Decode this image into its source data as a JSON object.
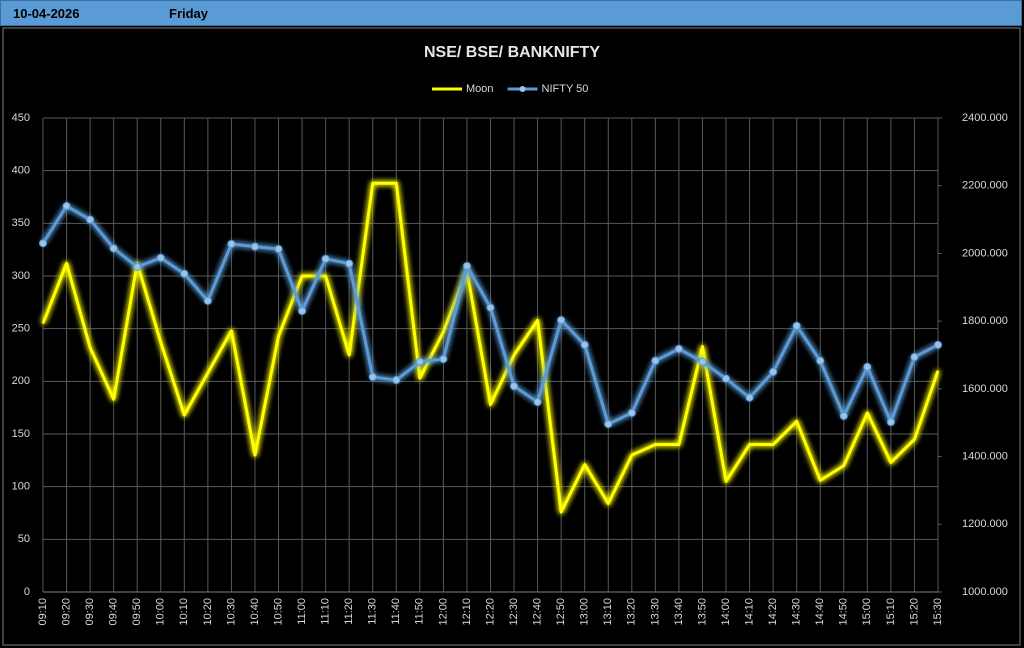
{
  "header": {
    "date": "10-04-2026",
    "day": "Friday"
  },
  "chart_data": {
    "type": "line",
    "title": "NSE/ BSE/ BANKNIFTY",
    "categories": [
      "09:10",
      "09:20",
      "09:30",
      "09:40",
      "09:50",
      "10:00",
      "10:10",
      "10:20",
      "10:30",
      "10:40",
      "10:50",
      "11:00",
      "11:10",
      "11:20",
      "11:30",
      "11:40",
      "11:50",
      "12:00",
      "12:10",
      "12:20",
      "12:30",
      "12:40",
      "12:50",
      "13:00",
      "13:10",
      "13:20",
      "13:30",
      "13:40",
      "13:50",
      "14:00",
      "14:10",
      "14:20",
      "14:30",
      "14:40",
      "14:50",
      "15:00",
      "15:10",
      "15:20",
      "15:30"
    ],
    "series": [
      {
        "name": "Moon",
        "color": "#ffff00",
        "markers": false,
        "values": [
          255,
          312,
          232,
          183,
          312,
          237,
          168,
          208,
          248,
          130,
          243,
          300,
          300,
          225,
          388,
          388,
          203,
          247,
          305,
          178,
          225,
          258,
          76,
          121,
          84,
          130,
          140,
          140,
          233,
          105,
          140,
          140,
          162,
          106,
          120,
          170,
          123,
          145,
          210
        ]
      },
      {
        "name": "NIFTY 50",
        "color": "#5b9bd5",
        "markers": true,
        "axis": "y2",
        "values": [
          2030,
          2140,
          2100,
          2015,
          1960,
          1987,
          1940,
          1860,
          2028,
          2020,
          2013,
          1830,
          1984,
          1970,
          1635,
          1626,
          1680,
          1688,
          1963,
          1840,
          1608,
          1561,
          1803,
          1730,
          1496,
          1529,
          1683,
          1718,
          1680,
          1630,
          1574,
          1650,
          1786,
          1683,
          1520,
          1665,
          1502,
          1694,
          1730
        ]
      }
    ],
    "ylim": [
      0,
      450
    ],
    "yticks": [
      0,
      50,
      100,
      150,
      200,
      250,
      300,
      350,
      400,
      450
    ],
    "y2lim": [
      1000,
      2400
    ],
    "y2ticks": [
      {
        "value": 1000,
        "label": "1000.000"
      },
      {
        "value": 1200,
        "label": "1200.000"
      },
      {
        "value": 1400,
        "label": "1400.000"
      },
      {
        "value": 1600,
        "label": "1600.000"
      },
      {
        "value": 1800,
        "label": "1800.000"
      },
      {
        "value": 2000,
        "label": "2000.000"
      },
      {
        "value": 2200,
        "label": "2200.000"
      },
      {
        "value": 2400,
        "label": "2400.000"
      }
    ],
    "grid": true,
    "legend": "top"
  }
}
